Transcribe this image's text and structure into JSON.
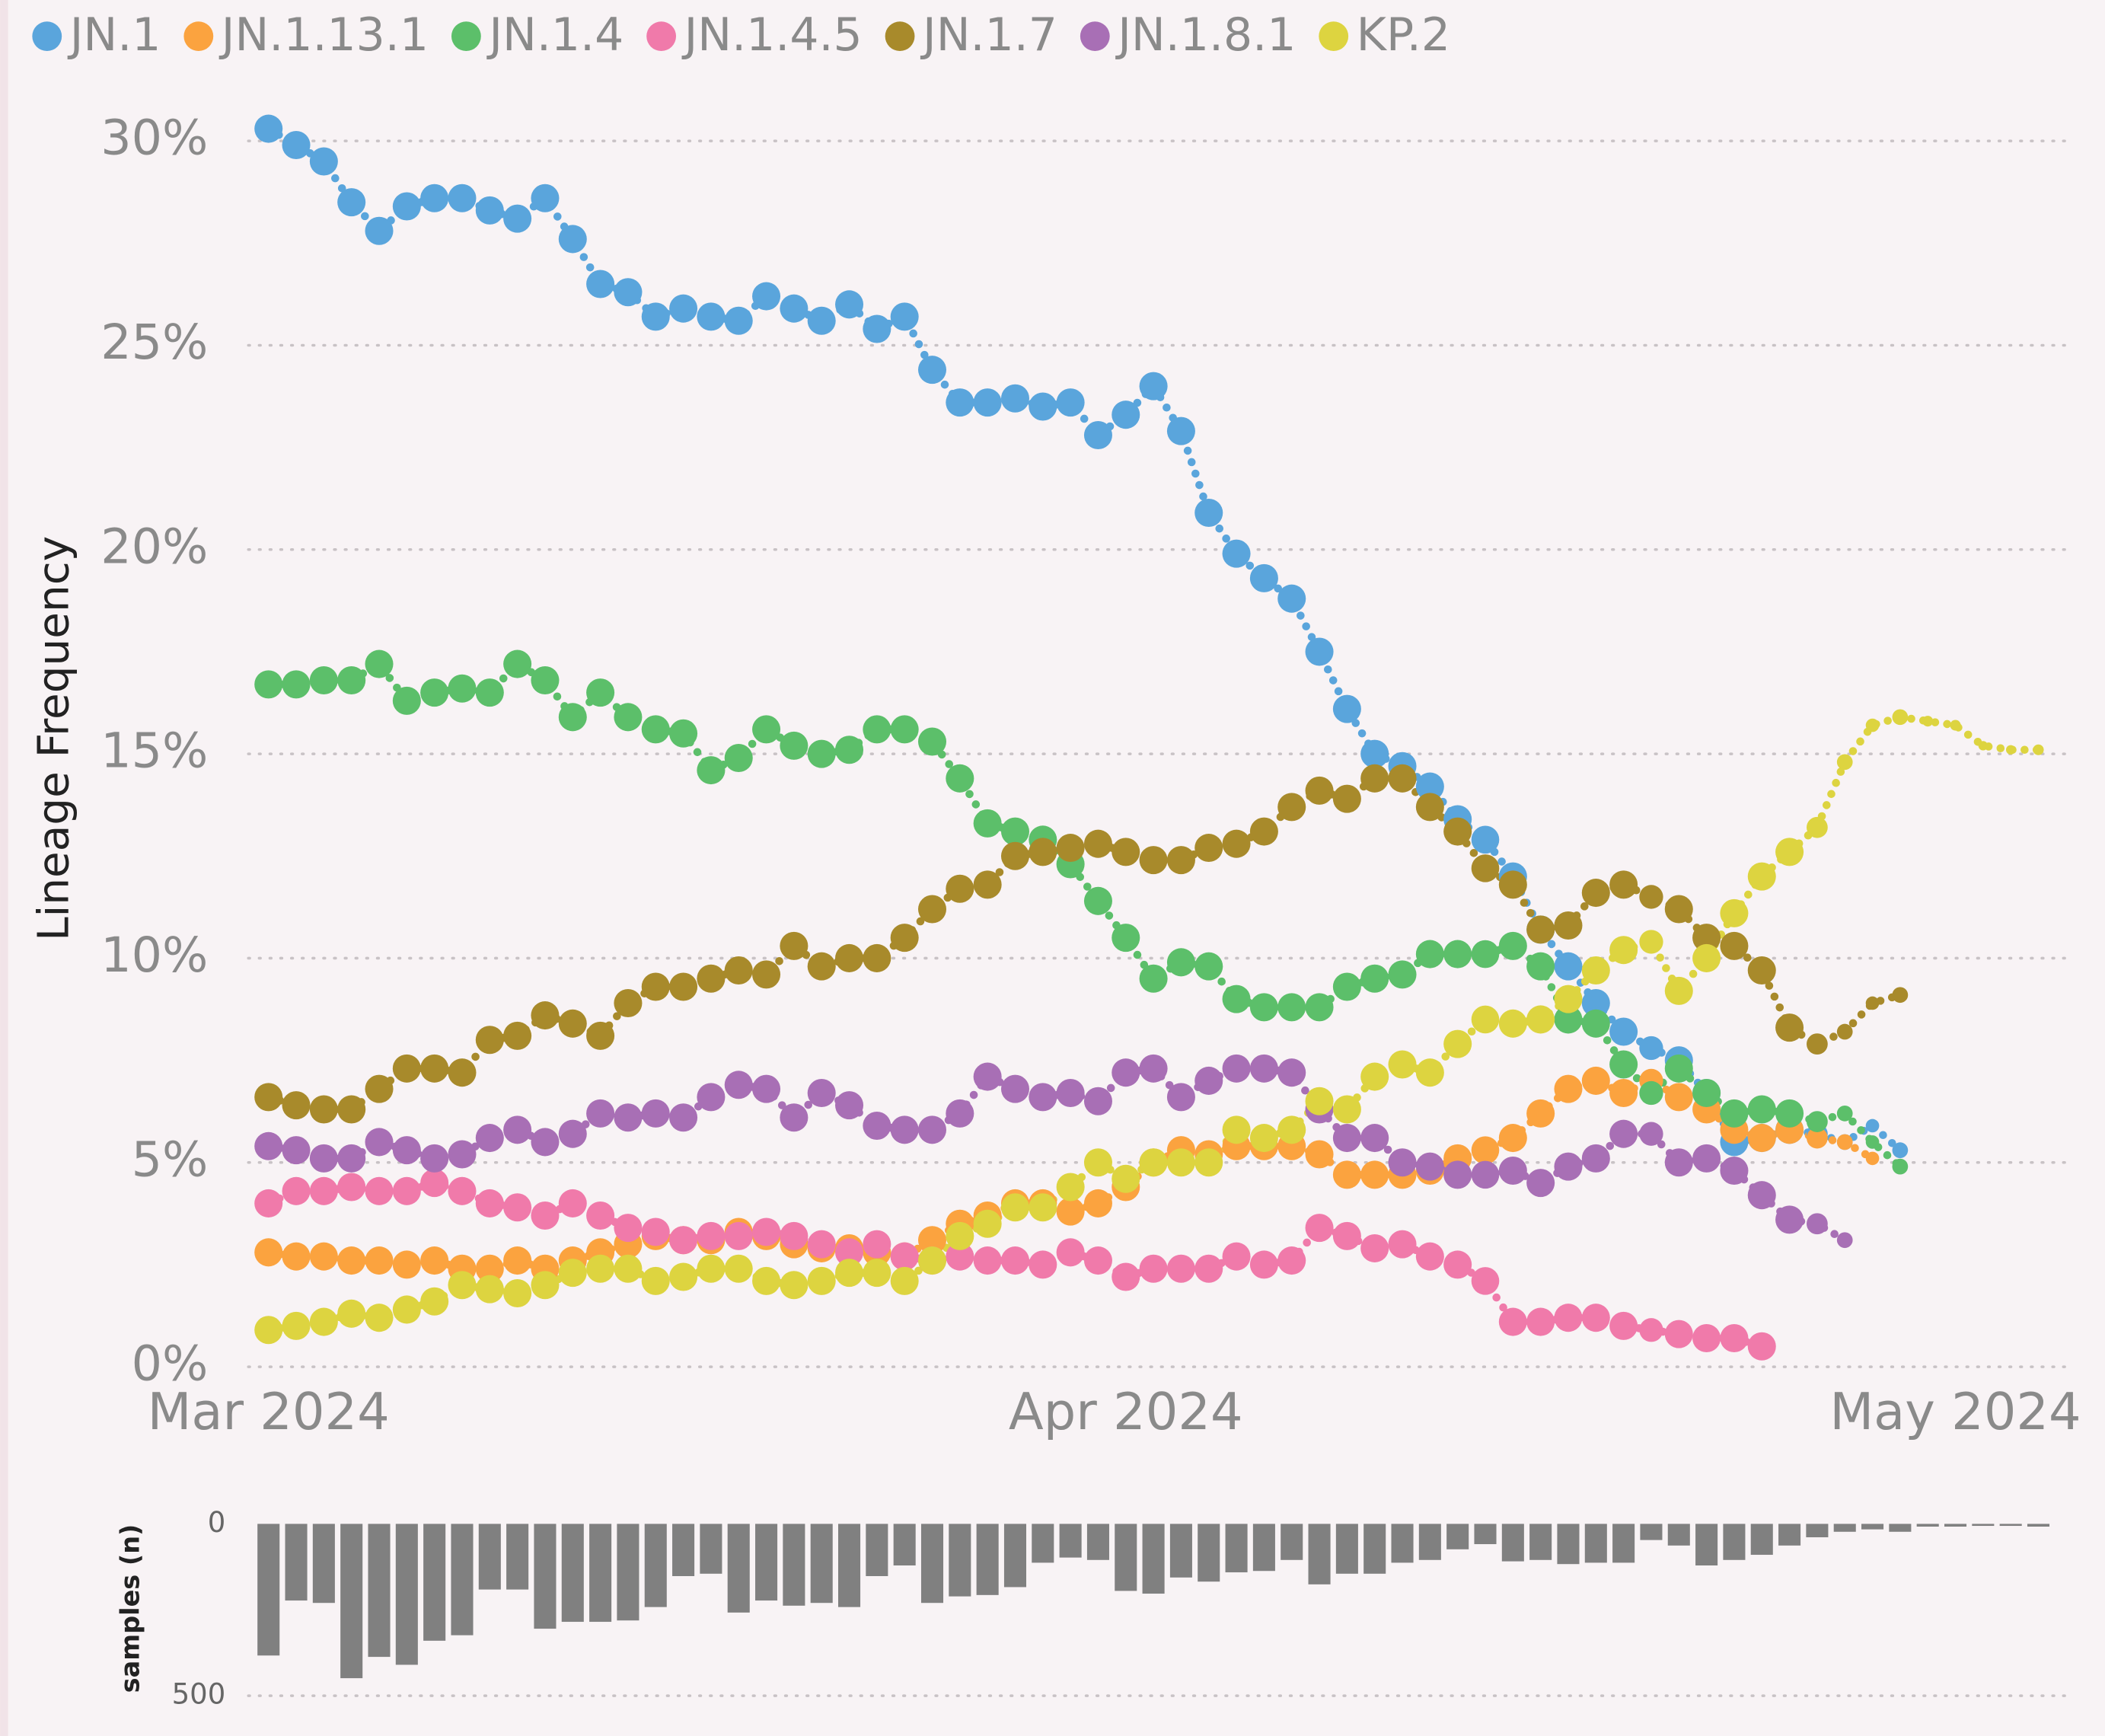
{
  "chart_data": [
    {
      "type": "scatter",
      "y_label": "Lineage Frequency",
      "legend": "top",
      "x": [
        0,
        1,
        2,
        3,
        4,
        5,
        6,
        7,
        8,
        9,
        10,
        11,
        12,
        13,
        14,
        15,
        16,
        17,
        18,
        19,
        20,
        21,
        22,
        23,
        24,
        25,
        26,
        27,
        28,
        29,
        30,
        31,
        32,
        33,
        34,
        35,
        36,
        37,
        38,
        39,
        40,
        41,
        42,
        43,
        44,
        45,
        46,
        47,
        48,
        49,
        50,
        51,
        52,
        53,
        54,
        55,
        56,
        57,
        58,
        59,
        60,
        61,
        62,
        63,
        64
      ],
      "xlim": [
        0,
        64
      ],
      "xticks": [
        {
          "value": 0,
          "label": "Mar 2024"
        },
        {
          "value": 31,
          "label": "Apr 2024"
        },
        {
          "value": 61,
          "label": "May 2024"
        }
      ],
      "ylim": [
        0,
        30
      ],
      "yticks": [
        {
          "value": 0,
          "label": "0%"
        },
        {
          "value": 5,
          "label": "5%"
        },
        {
          "value": 10,
          "label": "10%"
        },
        {
          "value": 15,
          "label": "15%"
        },
        {
          "value": 20,
          "label": "20%"
        },
        {
          "value": 25,
          "label": "25%"
        },
        {
          "value": 30,
          "label": "30%"
        }
      ],
      "grid": true,
      "series": [
        {
          "name": "JN.1",
          "color": "#5aa5dc",
          "values": [
            30.3,
            29.9,
            29.5,
            28.5,
            27.8,
            28.4,
            28.6,
            28.6,
            28.3,
            28.1,
            28.6,
            27.6,
            26.5,
            26.3,
            25.7,
            25.9,
            25.7,
            25.6,
            26.2,
            25.9,
            25.6,
            26.0,
            25.4,
            25.7,
            24.4,
            23.6,
            23.6,
            23.7,
            23.5,
            23.6,
            22.8,
            23.3,
            24.0,
            22.9,
            20.9,
            19.9,
            19.3,
            18.8,
            17.5,
            16.1,
            15.0,
            14.7,
            14.2,
            13.4,
            12.9,
            12.0,
            10.7,
            9.8,
            8.9,
            8.2,
            7.8,
            7.5,
            6.7,
            5.5,
            5.6,
            5.8,
            5.7,
            5.5,
            5.9,
            5.3,
            null,
            null,
            null,
            null,
            null
          ]
        },
        {
          "name": "JN.1.13.1",
          "color": "#fba33f",
          "values": [
            2.8,
            2.7,
            2.7,
            2.6,
            2.6,
            2.5,
            2.6,
            2.4,
            2.4,
            2.6,
            2.4,
            2.6,
            2.8,
            3.0,
            3.2,
            3.1,
            3.1,
            3.3,
            3.2,
            3.0,
            2.9,
            2.9,
            2.8,
            2.7,
            3.1,
            3.5,
            3.7,
            4.0,
            4.0,
            3.8,
            4.0,
            4.4,
            5.0,
            5.3,
            5.2,
            5.4,
            5.4,
            5.4,
            5.2,
            4.7,
            4.7,
            4.7,
            4.8,
            5.1,
            5.3,
            5.6,
            6.2,
            6.8,
            7.0,
            6.7,
            7.0,
            6.6,
            6.3,
            5.8,
            5.6,
            5.8,
            5.6,
            5.5,
            5.1,
            null,
            null,
            null,
            null,
            null,
            null
          ]
        },
        {
          "name": "JN.1.4",
          "color": "#5cbf6a",
          "values": [
            16.7,
            16.7,
            16.8,
            16.8,
            17.2,
            16.3,
            16.5,
            16.6,
            16.5,
            17.2,
            16.8,
            15.9,
            16.5,
            15.9,
            15.6,
            15.5,
            14.6,
            14.9,
            15.6,
            15.2,
            15.0,
            15.1,
            15.6,
            15.6,
            15.3,
            14.4,
            13.3,
            13.1,
            12.9,
            12.3,
            11.4,
            10.5,
            9.5,
            9.9,
            9.8,
            9.0,
            8.8,
            8.8,
            8.8,
            9.3,
            9.5,
            9.6,
            10.1,
            10.1,
            10.1,
            10.3,
            9.8,
            8.5,
            8.4,
            7.4,
            6.7,
            7.3,
            6.7,
            6.2,
            6.3,
            6.2,
            6.0,
            6.2,
            5.5,
            4.9,
            null,
            null,
            null,
            null,
            null
          ]
        },
        {
          "name": "JN.1.4.5",
          "color": "#f07aaa",
          "values": [
            4.0,
            4.3,
            4.3,
            4.4,
            4.3,
            4.3,
            4.5,
            4.3,
            4.0,
            3.9,
            3.7,
            4.0,
            3.7,
            3.4,
            3.3,
            3.1,
            3.2,
            3.2,
            3.3,
            3.2,
            3.0,
            2.8,
            3.0,
            2.7,
            2.6,
            2.7,
            2.6,
            2.6,
            2.5,
            2.8,
            2.6,
            2.2,
            2.4,
            2.4,
            2.4,
            2.7,
            2.5,
            2.6,
            3.4,
            3.2,
            2.9,
            3.0,
            2.7,
            2.5,
            2.1,
            1.1,
            1.1,
            1.2,
            1.2,
            1.0,
            0.9,
            0.8,
            0.7,
            0.7,
            0.5,
            null,
            null,
            null,
            null,
            null,
            null,
            null,
            null,
            null,
            null
          ]
        },
        {
          "name": "JN.1.7",
          "color": "#a88a2b",
          "values": [
            6.6,
            6.4,
            6.3,
            6.3,
            6.8,
            7.3,
            7.3,
            7.2,
            8.0,
            8.1,
            8.6,
            8.4,
            8.1,
            8.9,
            9.3,
            9.3,
            9.5,
            9.7,
            9.6,
            10.3,
            9.8,
            10.0,
            10.0,
            10.5,
            11.2,
            11.7,
            11.8,
            12.5,
            12.6,
            12.7,
            12.8,
            12.6,
            12.4,
            12.4,
            12.7,
            12.8,
            13.1,
            13.7,
            14.1,
            13.9,
            14.4,
            14.4,
            13.7,
            13.1,
            12.2,
            11.8,
            10.7,
            10.8,
            11.6,
            11.8,
            11.5,
            11.2,
            10.5,
            10.3,
            9.7,
            8.3,
            7.9,
            8.2,
            8.9,
            9.1,
            null,
            null,
            null,
            null,
            null
          ]
        },
        {
          "name": "JN.1.8.1",
          "color": "#a86fb5",
          "values": [
            5.4,
            5.3,
            5.1,
            5.1,
            5.5,
            5.3,
            5.1,
            5.2,
            5.6,
            5.8,
            5.5,
            5.7,
            6.2,
            6.1,
            6.2,
            6.1,
            6.6,
            6.9,
            6.8,
            6.1,
            6.7,
            6.4,
            5.9,
            5.8,
            5.8,
            6.2,
            7.1,
            6.8,
            6.6,
            6.7,
            6.5,
            7.2,
            7.3,
            6.6,
            7.0,
            7.3,
            7.3,
            7.2,
            6.3,
            5.6,
            5.6,
            5.0,
            4.9,
            4.7,
            4.7,
            4.8,
            4.5,
            4.9,
            5.1,
            5.7,
            5.7,
            5.0,
            5.1,
            4.8,
            4.2,
            3.6,
            3.5,
            3.1,
            null,
            null,
            null,
            null,
            null,
            null,
            null
          ]
        },
        {
          "name": "KP.2",
          "color": "#ddd440",
          "values": [
            0.9,
            1.0,
            1.1,
            1.3,
            1.2,
            1.4,
            1.6,
            2.0,
            1.9,
            1.8,
            2.0,
            2.3,
            2.4,
            2.4,
            2.1,
            2.2,
            2.4,
            2.4,
            2.1,
            2.0,
            2.1,
            2.3,
            2.3,
            2.1,
            2.6,
            3.2,
            3.5,
            3.9,
            3.9,
            4.4,
            5.0,
            4.6,
            5.0,
            5.0,
            5.0,
            5.8,
            5.6,
            5.8,
            6.5,
            6.3,
            7.1,
            7.4,
            7.2,
            7.9,
            8.5,
            8.4,
            8.5,
            9.0,
            9.7,
            10.2,
            10.4,
            9.2,
            10.0,
            11.1,
            12.0,
            12.6,
            13.2,
            14.8,
            15.7,
            15.9,
            15.8,
            15.7,
            15.2,
            15.1,
            15.1
          ]
        }
      ]
    },
    {
      "type": "bar",
      "y_label": "samples (n)",
      "color": "#808080",
      "x": [
        0,
        1,
        2,
        3,
        4,
        5,
        6,
        7,
        8,
        9,
        10,
        11,
        12,
        13,
        14,
        15,
        16,
        17,
        18,
        19,
        20,
        21,
        22,
        23,
        24,
        25,
        26,
        27,
        28,
        29,
        30,
        31,
        32,
        33,
        34,
        35,
        36,
        37,
        38,
        39,
        40,
        41,
        42,
        43,
        44,
        45,
        46,
        47,
        48,
        49,
        50,
        51,
        52,
        53,
        54,
        55,
        56,
        57,
        58,
        59,
        60,
        61,
        62,
        63,
        64
      ],
      "xlim": [
        0,
        64
      ],
      "values": [
        383,
        223,
        230,
        449,
        387,
        410,
        340,
        324,
        191,
        191,
        305,
        285,
        285,
        281,
        242,
        152,
        145,
        258,
        223,
        238,
        230,
        242,
        152,
        121,
        230,
        211,
        207,
        184,
        113,
        98,
        105,
        195,
        203,
        156,
        168,
        141,
        137,
        105,
        176,
        145,
        145,
        113,
        105,
        74,
        59,
        109,
        105,
        117,
        113,
        113,
        47,
        63,
        121,
        105,
        90,
        63,
        39,
        23,
        16,
        23,
        8,
        8,
        4,
        4,
        8
      ],
      "ylim": [
        0,
        500
      ],
      "yticks": [
        0,
        500
      ],
      "grid": true
    }
  ]
}
